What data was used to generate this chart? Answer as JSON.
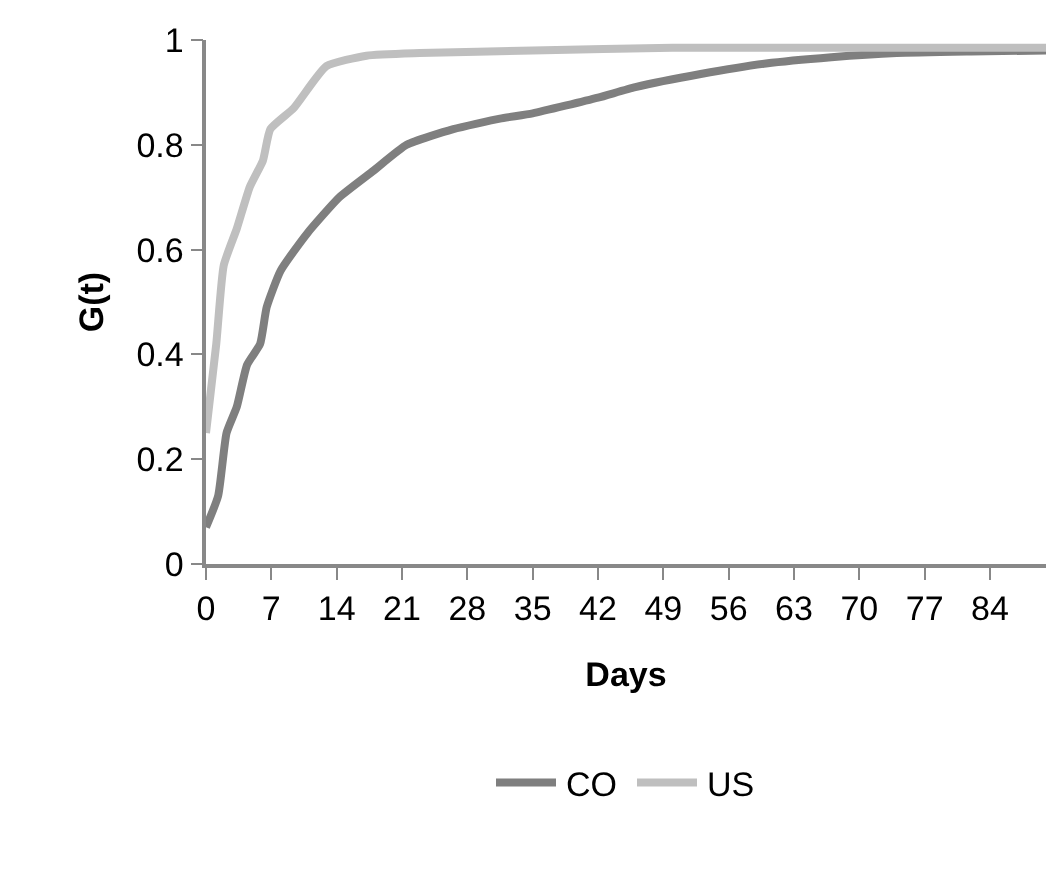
{
  "chart_data": {
    "type": "line",
    "xlabel": "Days",
    "ylabel": "G(t)",
    "xlim": [
      0,
      90
    ],
    "xticks": [
      0,
      7,
      14,
      21,
      28,
      35,
      42,
      49,
      56,
      63,
      70,
      77,
      84
    ],
    "ylim": [
      0,
      1
    ],
    "yticks": [
      0,
      0.2,
      0.4,
      0.6,
      0.8,
      1
    ],
    "grid": false,
    "legend": "bottom",
    "marker": "none",
    "line_style": "solid",
    "series": [
      {
        "name": "CO",
        "color": "#7f7f7f",
        "x": [
          0,
          1.3,
          2.2,
          3.3,
          4.4,
          5.8,
          6.5,
          8,
          10.8,
          14.3,
          17.9,
          21.5,
          26.5,
          31.5,
          35,
          42,
          46,
          53,
          60,
          67,
          74,
          82,
          90
        ],
        "values": [
          0.07,
          0.13,
          0.25,
          0.3,
          0.38,
          0.42,
          0.49,
          0.56,
          0.63,
          0.7,
          0.75,
          0.8,
          0.83,
          0.85,
          0.86,
          0.89,
          0.91,
          0.935,
          0.955,
          0.967,
          0.975,
          0.978,
          0.98
        ]
      },
      {
        "name": "US",
        "color": "#bfbfbf",
        "x": [
          0,
          1.1,
          1.9,
          3.3,
          4.7,
          6.1,
          6.9,
          9.4,
          12.9,
          17.2,
          22.9,
          35,
          50,
          70,
          90
        ],
        "values": [
          0.25,
          0.42,
          0.57,
          0.64,
          0.72,
          0.77,
          0.83,
          0.87,
          0.95,
          0.97,
          0.975,
          0.98,
          0.985,
          0.985,
          0.985
        ]
      }
    ]
  }
}
